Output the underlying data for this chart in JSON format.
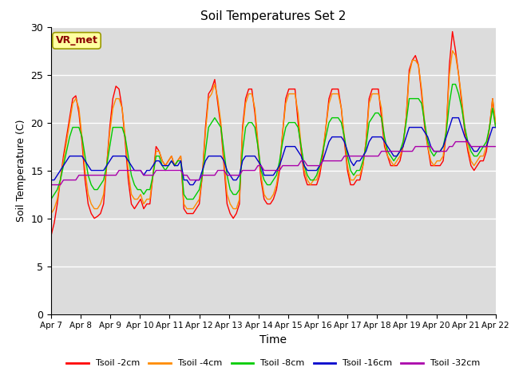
{
  "title": "Soil Temperatures Set 2",
  "xlabel": "Time",
  "ylabel": "Soil Temperature (C)",
  "ylim": [
    0,
    30
  ],
  "yticks": [
    0,
    5,
    10,
    15,
    20,
    25,
    30
  ],
  "xtick_labels": [
    "Apr 7",
    "Apr 8",
    "Apr 9",
    "Apr 10",
    "Apr 11",
    "Apr 12",
    "Apr 13",
    "Apr 14",
    "Apr 15",
    "Apr 16",
    "Apr 17",
    "Apr 18",
    "Apr 19",
    "Apr 20",
    "Apr 21",
    "Apr 22"
  ],
  "annotation_text": "VR_met",
  "annotation_color": "#8B0000",
  "annotation_bg": "#FFFFA0",
  "fig_bg": "#FFFFFF",
  "plot_bg": "#DCDCDC",
  "series": [
    {
      "label": "Tsoil -2cm",
      "color": "#FF0000"
    },
    {
      "label": "Tsoil -4cm",
      "color": "#FF8C00"
    },
    {
      "label": "Tsoil -8cm",
      "color": "#00CC00"
    },
    {
      "label": "Tsoil -16cm",
      "color": "#0000CC"
    },
    {
      "label": "Tsoil -32cm",
      "color": "#AA00AA"
    }
  ],
  "t2cm": [
    8.2,
    9.5,
    11.5,
    14.0,
    16.5,
    18.5,
    20.5,
    22.5,
    22.8,
    21.0,
    18.0,
    14.0,
    11.5,
    10.5,
    10.0,
    10.2,
    10.5,
    11.5,
    15.5,
    19.5,
    22.5,
    23.8,
    23.5,
    21.5,
    18.0,
    14.0,
    11.5,
    11.0,
    11.5,
    12.0,
    11.0,
    11.5,
    11.5,
    14.5,
    17.5,
    17.0,
    16.0,
    15.5,
    16.0,
    16.5,
    15.5,
    16.0,
    16.5,
    11.0,
    10.5,
    10.5,
    10.5,
    11.0,
    11.5,
    14.5,
    19.5,
    23.0,
    23.5,
    24.5,
    22.0,
    19.5,
    15.5,
    11.5,
    10.5,
    10.0,
    10.5,
    11.5,
    19.5,
    22.5,
    23.5,
    23.5,
    21.0,
    17.5,
    14.0,
    12.0,
    11.5,
    11.5,
    12.0,
    13.0,
    15.0,
    19.0,
    22.5,
    23.5,
    23.5,
    23.5,
    20.0,
    17.0,
    14.5,
    13.5,
    13.5,
    13.5,
    13.5,
    14.5,
    16.5,
    19.5,
    22.5,
    23.5,
    23.5,
    23.5,
    21.5,
    18.0,
    15.0,
    13.5,
    13.5,
    14.0,
    14.0,
    15.5,
    18.0,
    22.5,
    23.5,
    23.5,
    23.5,
    20.5,
    17.5,
    16.5,
    15.5,
    15.5,
    15.5,
    16.0,
    17.5,
    20.5,
    25.5,
    26.5,
    27.0,
    26.0,
    23.0,
    19.5,
    17.5,
    15.5,
    15.5,
    15.5,
    15.5,
    16.0,
    19.0,
    26.0,
    29.5,
    27.5,
    25.0,
    22.0,
    19.0,
    17.0,
    15.5,
    15.0,
    15.5,
    16.0,
    16.0,
    17.0,
    19.5,
    22.5,
    19.5
  ],
  "t4cm": [
    10.5,
    11.0,
    12.0,
    14.0,
    16.0,
    18.0,
    20.0,
    22.0,
    22.5,
    21.5,
    18.5,
    15.0,
    12.5,
    11.5,
    11.0,
    11.0,
    11.5,
    12.5,
    15.5,
    19.0,
    21.5,
    22.5,
    22.5,
    21.5,
    18.5,
    15.0,
    12.5,
    12.0,
    12.0,
    12.5,
    11.5,
    12.0,
    12.0,
    14.5,
    17.0,
    17.0,
    16.0,
    15.5,
    16.0,
    16.5,
    15.5,
    16.0,
    16.5,
    11.5,
    11.0,
    11.0,
    11.0,
    11.5,
    12.0,
    14.5,
    19.0,
    22.5,
    23.0,
    24.0,
    22.5,
    20.0,
    16.0,
    12.5,
    11.5,
    11.0,
    11.0,
    12.0,
    19.0,
    22.0,
    23.0,
    23.0,
    21.5,
    18.0,
    14.5,
    12.5,
    12.0,
    12.0,
    12.5,
    13.5,
    15.5,
    19.0,
    22.0,
    23.0,
    23.0,
    23.0,
    21.0,
    17.5,
    15.0,
    14.0,
    13.5,
    14.0,
    14.0,
    15.0,
    17.0,
    19.5,
    22.0,
    23.0,
    23.0,
    23.0,
    21.5,
    18.5,
    15.5,
    14.0,
    14.0,
    14.5,
    14.5,
    15.5,
    18.0,
    22.0,
    23.0,
    23.0,
    23.0,
    21.5,
    18.0,
    16.5,
    16.0,
    15.5,
    16.0,
    16.5,
    17.5,
    20.5,
    25.0,
    26.5,
    26.5,
    26.0,
    23.5,
    20.0,
    17.5,
    16.0,
    15.5,
    16.0,
    16.0,
    16.5,
    19.5,
    25.0,
    27.5,
    27.0,
    25.0,
    22.5,
    19.5,
    17.5,
    16.0,
    15.5,
    16.0,
    16.5,
    16.5,
    17.5,
    19.5,
    22.5,
    20.0
  ],
  "t8cm": [
    12.0,
    12.5,
    13.0,
    14.0,
    15.5,
    17.0,
    18.5,
    19.5,
    19.5,
    19.5,
    18.5,
    16.5,
    14.5,
    13.5,
    13.0,
    13.0,
    13.5,
    14.0,
    15.5,
    17.5,
    19.5,
    19.5,
    19.5,
    19.5,
    18.5,
    16.5,
    14.5,
    13.5,
    13.0,
    13.0,
    12.5,
    13.0,
    13.0,
    14.5,
    16.5,
    16.5,
    15.5,
    15.0,
    15.5,
    16.0,
    15.5,
    16.0,
    16.0,
    12.5,
    12.0,
    12.0,
    12.0,
    12.5,
    13.0,
    14.5,
    17.0,
    19.5,
    20.0,
    20.5,
    20.0,
    19.5,
    17.0,
    14.5,
    13.0,
    12.5,
    12.5,
    13.0,
    17.0,
    19.5,
    20.0,
    20.0,
    19.5,
    17.5,
    15.0,
    14.0,
    13.5,
    13.5,
    14.0,
    14.5,
    16.0,
    18.0,
    19.5,
    20.0,
    20.0,
    20.0,
    19.5,
    17.5,
    15.5,
    14.5,
    14.0,
    14.0,
    14.5,
    15.5,
    17.0,
    18.5,
    20.0,
    20.5,
    20.5,
    20.5,
    20.0,
    18.5,
    16.5,
    15.0,
    14.5,
    15.0,
    15.0,
    16.0,
    17.5,
    20.0,
    20.5,
    21.0,
    21.0,
    20.5,
    18.5,
    17.0,
    16.5,
    16.0,
    16.5,
    17.0,
    18.0,
    20.0,
    22.5,
    22.5,
    22.5,
    22.5,
    22.0,
    20.0,
    18.0,
    17.0,
    16.5,
    17.0,
    17.0,
    17.5,
    19.0,
    22.0,
    24.0,
    24.0,
    23.0,
    21.5,
    19.5,
    18.0,
    17.0,
    16.5,
    16.5,
    17.0,
    17.5,
    18.0,
    19.5,
    21.5,
    19.5
  ],
  "t16cm": [
    14.0,
    14.0,
    14.5,
    15.0,
    15.5,
    16.0,
    16.5,
    16.5,
    16.5,
    16.5,
    16.5,
    16.0,
    15.5,
    15.0,
    15.0,
    15.0,
    15.0,
    15.0,
    15.5,
    16.0,
    16.5,
    16.5,
    16.5,
    16.5,
    16.5,
    16.0,
    15.5,
    15.0,
    15.0,
    15.0,
    14.5,
    15.0,
    15.0,
    15.5,
    16.0,
    16.0,
    15.5,
    15.5,
    15.5,
    16.0,
    15.5,
    15.5,
    16.0,
    14.0,
    14.0,
    13.5,
    13.5,
    14.0,
    14.0,
    15.0,
    16.0,
    16.5,
    16.5,
    16.5,
    16.5,
    16.5,
    16.0,
    15.0,
    14.5,
    14.0,
    14.0,
    14.5,
    16.0,
    16.5,
    16.5,
    16.5,
    16.5,
    16.0,
    15.5,
    14.5,
    14.5,
    14.5,
    14.5,
    15.0,
    15.5,
    16.5,
    17.5,
    17.5,
    17.5,
    17.5,
    17.0,
    16.5,
    15.5,
    15.0,
    15.0,
    15.0,
    15.0,
    15.5,
    16.0,
    17.0,
    18.0,
    18.5,
    18.5,
    18.5,
    18.5,
    18.0,
    17.0,
    16.0,
    15.5,
    16.0,
    16.0,
    16.5,
    17.0,
    18.0,
    18.5,
    18.5,
    18.5,
    18.5,
    18.0,
    17.5,
    17.0,
    16.5,
    16.5,
    17.0,
    17.5,
    18.5,
    19.5,
    19.5,
    19.5,
    19.5,
    19.5,
    19.0,
    18.5,
    17.5,
    17.0,
    17.0,
    17.0,
    17.5,
    18.5,
    19.5,
    20.5,
    20.5,
    20.5,
    19.5,
    18.5,
    18.0,
    17.5,
    17.0,
    17.0,
    17.5,
    17.5,
    17.5,
    18.5,
    19.5,
    19.5
  ],
  "t32cm": [
    13.5,
    13.5,
    13.5,
    13.5,
    14.0,
    14.0,
    14.0,
    14.0,
    14.0,
    14.5,
    14.5,
    14.5,
    14.5,
    14.5,
    14.5,
    14.5,
    14.5,
    14.5,
    14.5,
    14.5,
    14.5,
    14.5,
    15.0,
    15.0,
    15.0,
    15.0,
    15.0,
    15.0,
    15.0,
    15.0,
    14.5,
    14.5,
    14.5,
    14.5,
    15.0,
    15.0,
    15.0,
    15.0,
    15.0,
    15.0,
    15.0,
    15.0,
    15.0,
    14.5,
    14.5,
    14.0,
    14.0,
    14.0,
    14.0,
    14.5,
    14.5,
    14.5,
    14.5,
    14.5,
    15.0,
    15.0,
    15.0,
    14.5,
    14.5,
    14.5,
    14.5,
    14.5,
    15.0,
    15.0,
    15.0,
    15.0,
    15.0,
    15.5,
    15.5,
    15.0,
    15.0,
    15.0,
    15.0,
    15.0,
    15.0,
    15.5,
    15.5,
    15.5,
    15.5,
    15.5,
    15.5,
    16.0,
    16.0,
    15.5,
    15.5,
    15.5,
    15.5,
    15.5,
    16.0,
    16.0,
    16.0,
    16.0,
    16.0,
    16.0,
    16.0,
    16.5,
    16.5,
    16.5,
    16.5,
    16.5,
    16.5,
    16.5,
    16.5,
    16.5,
    16.5,
    16.5,
    16.5,
    17.0,
    17.0,
    17.0,
    17.0,
    17.0,
    17.0,
    17.0,
    17.0,
    17.0,
    17.0,
    17.0,
    17.5,
    17.5,
    17.5,
    17.5,
    17.5,
    17.5,
    17.0,
    17.0,
    17.0,
    17.0,
    17.0,
    17.5,
    17.5,
    18.0,
    18.0,
    18.0,
    18.0,
    18.0,
    17.5,
    17.5,
    17.5,
    17.5,
    17.5,
    17.5,
    17.5,
    17.5,
    17.5
  ]
}
